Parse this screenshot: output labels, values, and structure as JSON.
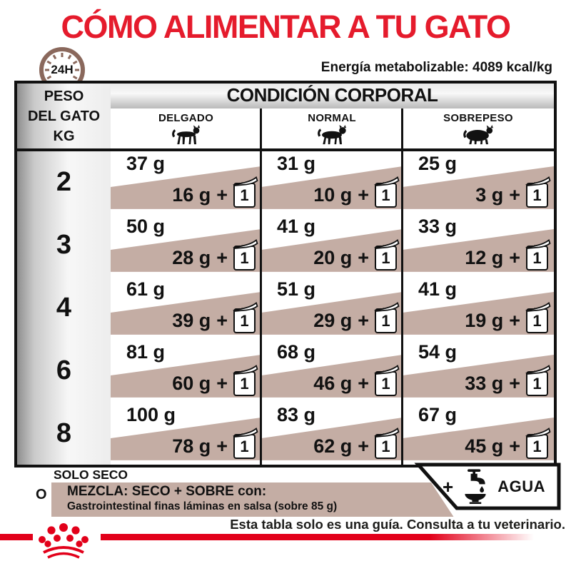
{
  "title": "CÓMO ALIMENTAR A TU GATO",
  "clock": {
    "label": "24H"
  },
  "energy": {
    "label": "Energía metabolizable: 4089 kcal/kg"
  },
  "table": {
    "weight_header": [
      "PESO",
      "DEL GATO",
      "KG"
    ],
    "condition_header": "CONDICIÓN CORPORAL",
    "conditions": [
      "DELGADO",
      "NORMAL",
      "SOBREPESO"
    ],
    "plus": "+",
    "pouch_count": "1",
    "rows": [
      {
        "weight": "2",
        "cells": [
          {
            "dry": "37 g",
            "mix": "16 g"
          },
          {
            "dry": "31 g",
            "mix": "10 g"
          },
          {
            "dry": "25 g",
            "mix": "3 g"
          }
        ]
      },
      {
        "weight": "3",
        "cells": [
          {
            "dry": "50 g",
            "mix": "28 g"
          },
          {
            "dry": "41 g",
            "mix": "20 g"
          },
          {
            "dry": "33 g",
            "mix": "12 g"
          }
        ]
      },
      {
        "weight": "4",
        "cells": [
          {
            "dry": "61 g",
            "mix": "39 g"
          },
          {
            "dry": "51 g",
            "mix": "29 g"
          },
          {
            "dry": "41 g",
            "mix": "19 g"
          }
        ]
      },
      {
        "weight": "6",
        "cells": [
          {
            "dry": "81 g",
            "mix": "60 g"
          },
          {
            "dry": "68 g",
            "mix": "46 g"
          },
          {
            "dry": "54 g",
            "mix": "33 g"
          }
        ]
      },
      {
        "weight": "8",
        "cells": [
          {
            "dry": "100 g",
            "mix": "78 g"
          },
          {
            "dry": "83 g",
            "mix": "62 g"
          },
          {
            "dry": "67 g",
            "mix": "45 g"
          }
        ]
      }
    ]
  },
  "legend": {
    "dry_only_label": "SOLO SECO",
    "or_label": "O",
    "mix_title": "MEZCLA: SECO + SOBRE con:",
    "mix_subtitle": "Gastrointestinal finas láminas en salsa (sobre 85 g)",
    "water_plus": "+",
    "water_label": "AGUA"
  },
  "footer": {
    "disclaimer": "Esta tabla solo es una guía. Consulta a tu veterinario."
  },
  "colors": {
    "brand_red": "#e2001a",
    "title_red": "#e51b2c",
    "wedge_mauve": "#c4ada4",
    "clock_brown": "#8a685c"
  }
}
